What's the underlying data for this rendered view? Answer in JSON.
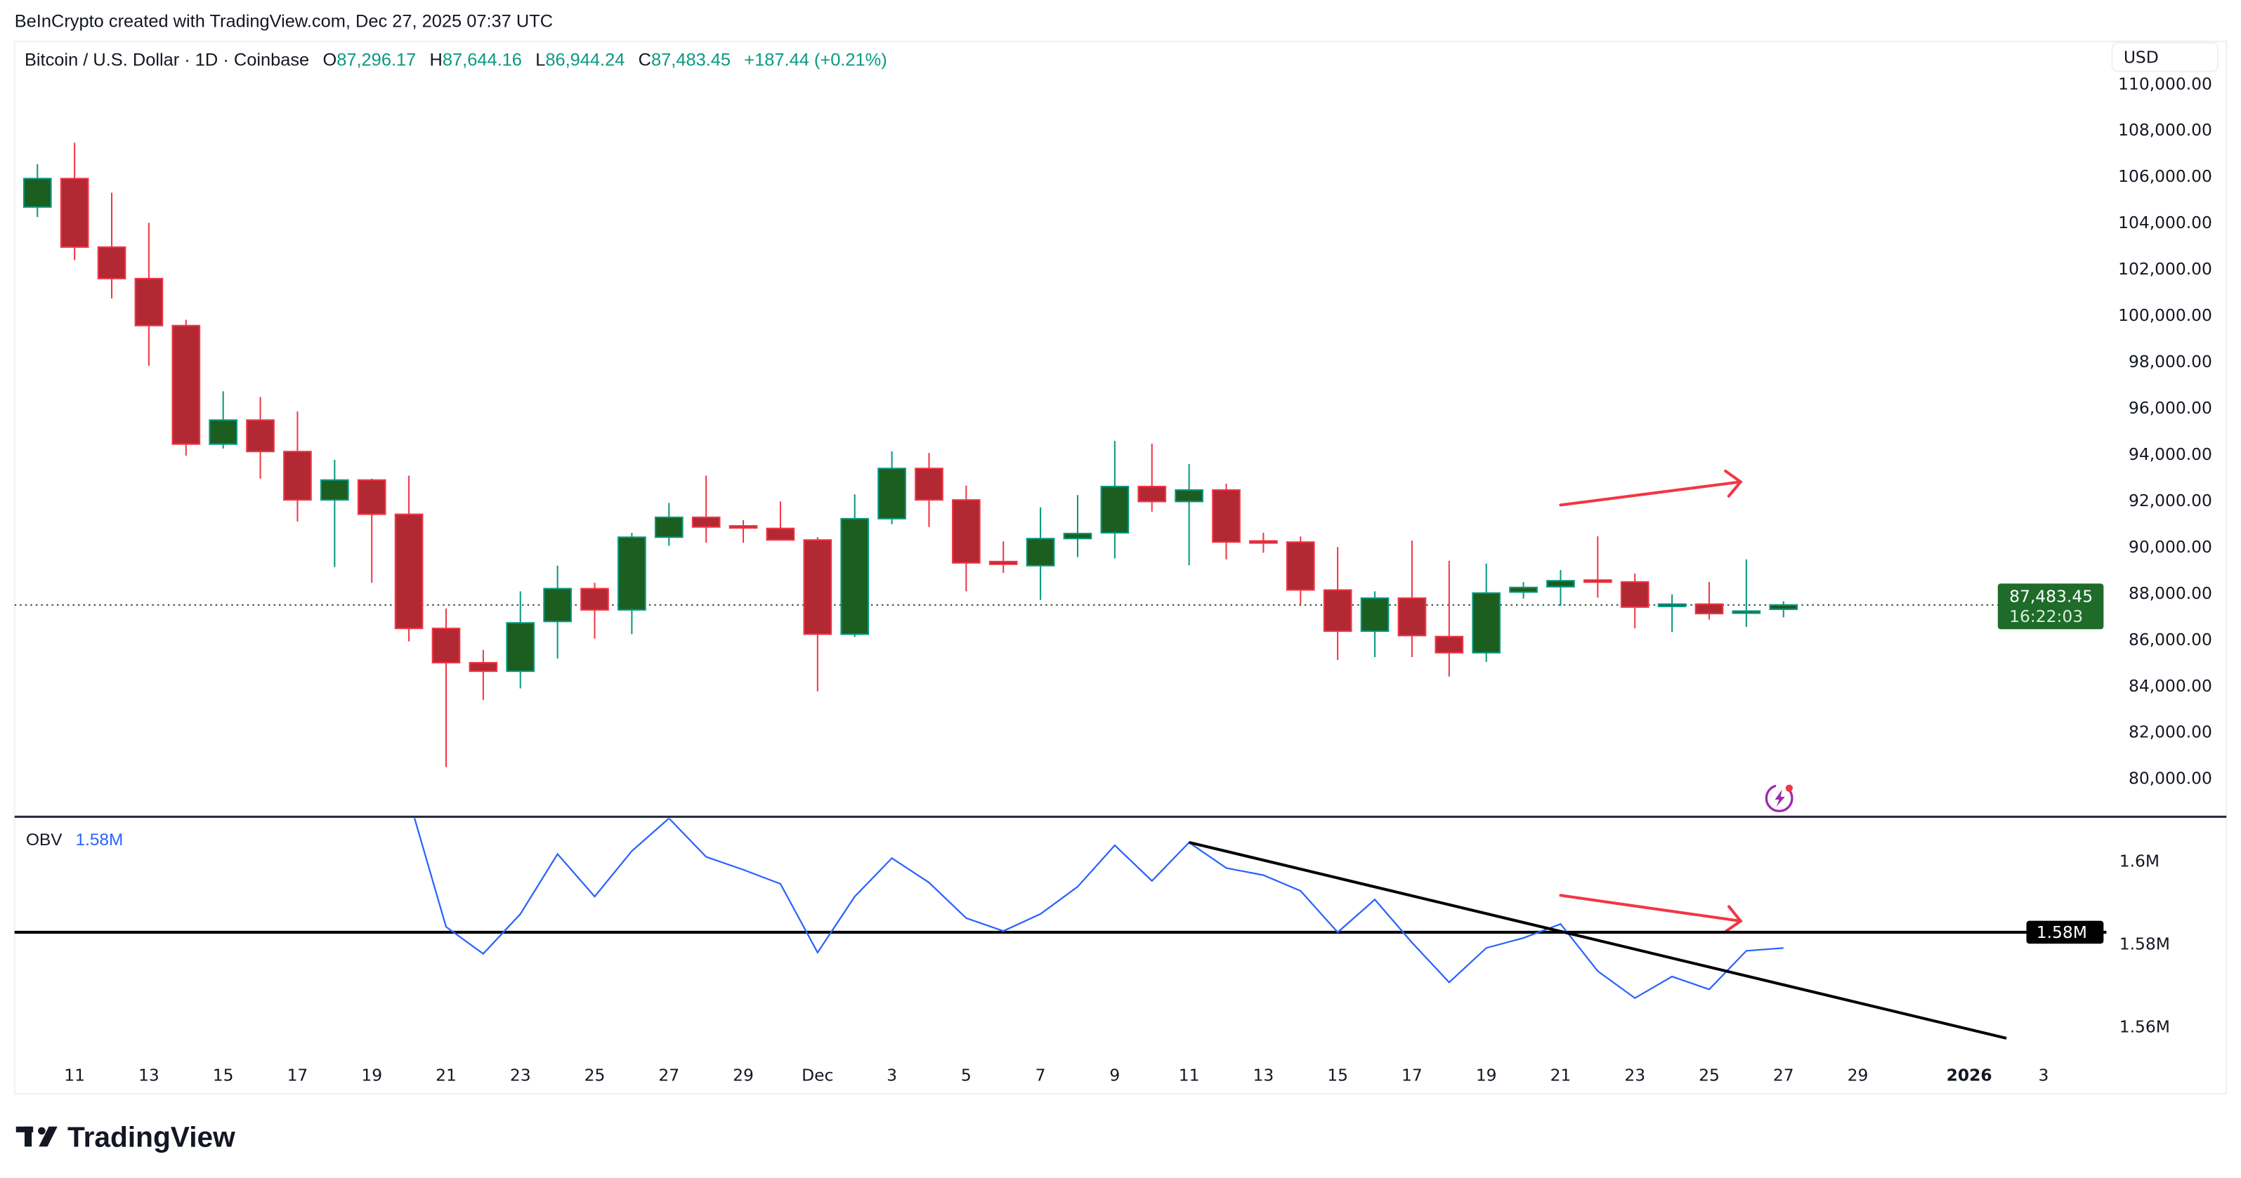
{
  "watermark": "BeInCrypto created with TradingView.com, Dec 27, 2025 07:37 UTC",
  "legend": {
    "symbol": "Bitcoin / U.S. Dollar · 1D · Coinbase",
    "o_label": "O",
    "o_value": "87,296.17",
    "h_label": "H",
    "h_value": "87,644.16",
    "l_label": "L",
    "l_value": "86,944.24",
    "c_label": "C",
    "c_value": "87,483.45",
    "change": "+187.44 (+0.21%)"
  },
  "currency_button": "USD",
  "last_price": {
    "value": "87,483.45",
    "countdown": "16:22:03"
  },
  "obv_legend": {
    "label": "OBV",
    "value": "1.58M"
  },
  "obv_level_label": "1.58M",
  "brand": "TradingView",
  "colors": {
    "up": "#089981",
    "up_body": "#1b5e20",
    "down": "#f23645",
    "down_body": "#b22833",
    "obv": "#2962ff",
    "annotation": "#f23645",
    "price_tag": "#1e6b2a"
  },
  "chart_data": [
    {
      "type": "candlestick",
      "title": "Bitcoin / U.S. Dollar · 1D · Coinbase",
      "ylim": [
        79000,
        110500
      ],
      "y_ticks": [
        "80,000.00",
        "82,000.00",
        "84,000.00",
        "86,000.00",
        "88,000.00",
        "90,000.00",
        "92,000.00",
        "94,000.00",
        "96,000.00",
        "98,000.00",
        "100,000.00",
        "102,000.00",
        "104,000.00",
        "106,000.00",
        "108,000.00",
        "110,000.00"
      ],
      "columns": [
        "date",
        "open",
        "high",
        "low",
        "close"
      ],
      "candles": [
        [
          "2025-11-10",
          104670,
          106520,
          104240,
          105900
        ],
        [
          "2025-11-11",
          105900,
          107450,
          102380,
          102940
        ],
        [
          "2025-11-12",
          102940,
          105290,
          100720,
          101580
        ],
        [
          "2025-11-13",
          101580,
          103990,
          97820,
          99550
        ],
        [
          "2025-11-14",
          99550,
          99800,
          93930,
          94430
        ],
        [
          "2025-11-15",
          94430,
          96710,
          94240,
          95470
        ],
        [
          "2025-11-16",
          95470,
          96460,
          92940,
          94110
        ],
        [
          "2025-11-17",
          94110,
          95840,
          91090,
          92020
        ],
        [
          "2025-11-18",
          92020,
          93750,
          89120,
          92880
        ],
        [
          "2025-11-19",
          92880,
          92940,
          88440,
          91400
        ],
        [
          "2025-11-20",
          91400,
          93070,
          85910,
          86470
        ],
        [
          "2025-11-21",
          86470,
          87330,
          80480,
          84990
        ],
        [
          "2025-11-22",
          84990,
          85540,
          83380,
          84620
        ],
        [
          "2025-11-23",
          84620,
          88070,
          83880,
          86710
        ],
        [
          "2025-11-24",
          86770,
          89180,
          85170,
          88190
        ],
        [
          "2025-11-25",
          88190,
          88440,
          86030,
          87270
        ],
        [
          "2025-11-26",
          87270,
          90600,
          86220,
          90410
        ],
        [
          "2025-11-27",
          90410,
          91890,
          90040,
          91270
        ],
        [
          "2025-11-28",
          91270,
          93070,
          90170,
          90850
        ],
        [
          "2025-11-29",
          90900,
          91150,
          90170,
          90820
        ],
        [
          "2025-11-30",
          90790,
          91950,
          90290,
          90290
        ],
        [
          "2025-12-01",
          90290,
          90410,
          83750,
          86220
        ],
        [
          "2025-12-02",
          86220,
          92260,
          86100,
          91210
        ],
        [
          "2025-12-03",
          91210,
          94120,
          90970,
          93380
        ],
        [
          "2025-12-04",
          93380,
          94050,
          90850,
          92020
        ],
        [
          "2025-12-05",
          92020,
          92640,
          88070,
          89300
        ],
        [
          "2025-12-06",
          89360,
          90230,
          88870,
          89240
        ],
        [
          "2025-12-07",
          89180,
          91700,
          87700,
          90350
        ],
        [
          "2025-12-08",
          90350,
          92230,
          89550,
          90570
        ],
        [
          "2025-12-09",
          90600,
          94570,
          89490,
          92600
        ],
        [
          "2025-12-10",
          92600,
          94450,
          91510,
          91950
        ],
        [
          "2025-12-11",
          91950,
          93570,
          89200,
          92450
        ],
        [
          "2025-12-12",
          92450,
          92720,
          89450,
          90200
        ],
        [
          "2025-12-13",
          90250,
          90600,
          89740,
          90200
        ],
        [
          "2025-12-14",
          90200,
          90440,
          87510,
          88130
        ],
        [
          "2025-12-15",
          88130,
          89990,
          85110,
          86350
        ],
        [
          "2025-12-16",
          86350,
          88070,
          85230,
          87780
        ],
        [
          "2025-12-17",
          87780,
          90270,
          85230,
          86160
        ],
        [
          "2025-12-18",
          86120,
          89390,
          84390,
          85420
        ],
        [
          "2025-12-19",
          85420,
          89270,
          85020,
          88000
        ],
        [
          "2025-12-20",
          88040,
          88470,
          87760,
          88240
        ],
        [
          "2025-12-21",
          88270,
          88990,
          87450,
          88530
        ],
        [
          "2025-12-22",
          88560,
          90450,
          87800,
          88520
        ],
        [
          "2025-12-23",
          88480,
          88840,
          86480,
          87390
        ],
        [
          "2025-12-24",
          87420,
          87940,
          86310,
          87520
        ],
        [
          "2025-12-25",
          87520,
          88480,
          86850,
          87110
        ],
        [
          "2025-12-26",
          87160,
          89450,
          86540,
          87220
        ],
        [
          "2025-12-27",
          87296.17,
          87644.16,
          86944.24,
          87483.45
        ]
      ],
      "last_close": 87483.45
    },
    {
      "type": "line",
      "series": [
        {
          "name": "OBV",
          "unit": "M"
        }
      ],
      "y_ticks": [
        "1.6M",
        "1.58M",
        "1.56M"
      ],
      "y_tick_values": [
        1.6,
        1.58,
        1.56
      ],
      "points": [
        [
          "2025-11-20",
          1.615
        ],
        [
          "2025-11-21",
          1.5841
        ],
        [
          "2025-11-22",
          1.5776
        ],
        [
          "2025-11-23",
          1.5872
        ],
        [
          "2025-11-24",
          1.6017
        ],
        [
          "2025-11-25",
          1.5914
        ],
        [
          "2025-11-26",
          1.6024
        ],
        [
          "2025-11-27",
          1.6103
        ],
        [
          "2025-11-28",
          1.601
        ],
        [
          "2025-11-29",
          1.5979
        ],
        [
          "2025-11-30",
          1.5945
        ],
        [
          "2025-12-01",
          1.5779
        ],
        [
          "2025-12-02",
          1.5914
        ],
        [
          "2025-12-03",
          1.6007
        ],
        [
          "2025-12-04",
          1.5948
        ],
        [
          "2025-12-05",
          1.5862
        ],
        [
          "2025-12-06",
          1.5831
        ],
        [
          "2025-12-07",
          1.5872
        ],
        [
          "2025-12-08",
          1.5938
        ],
        [
          "2025-12-09",
          1.6038
        ],
        [
          "2025-12-10",
          1.5952
        ],
        [
          "2025-12-11",
          1.6045
        ],
        [
          "2025-12-12",
          1.5983
        ],
        [
          "2025-12-13",
          1.5966
        ],
        [
          "2025-12-14",
          1.5928
        ],
        [
          "2025-12-15",
          1.5828
        ],
        [
          "2025-12-16",
          1.5907
        ],
        [
          "2025-12-17",
          1.5803
        ],
        [
          "2025-12-18",
          1.5707
        ],
        [
          "2025-12-19",
          1.579
        ],
        [
          "2025-12-20",
          1.5814
        ],
        [
          "2025-12-21",
          1.5848
        ],
        [
          "2025-12-22",
          1.5734
        ],
        [
          "2025-12-23",
          1.5669
        ],
        [
          "2025-12-24",
          1.5721
        ],
        [
          "2025-12-25",
          1.569
        ],
        [
          "2025-12-26",
          1.5783
        ],
        [
          "2025-12-27",
          1.579
        ]
      ],
      "horizontal_level": 1.5828,
      "trendline": {
        "from": [
          "2025-12-11",
          1.6045
        ],
        "to": [
          "2026-01-02",
          1.5572
        ]
      }
    }
  ],
  "x_ticks": [
    {
      "label": "11",
      "date": "2025-11-11"
    },
    {
      "label": "13",
      "date": "2025-11-13"
    },
    {
      "label": "15",
      "date": "2025-11-15"
    },
    {
      "label": "17",
      "date": "2025-11-17"
    },
    {
      "label": "19",
      "date": "2025-11-19"
    },
    {
      "label": "21",
      "date": "2025-11-21"
    },
    {
      "label": "23",
      "date": "2025-11-23"
    },
    {
      "label": "25",
      "date": "2025-11-25"
    },
    {
      "label": "27",
      "date": "2025-11-27"
    },
    {
      "label": "29",
      "date": "2025-11-29"
    },
    {
      "label": "Dec",
      "date": "2025-12-01"
    },
    {
      "label": "3",
      "date": "2025-12-03"
    },
    {
      "label": "5",
      "date": "2025-12-05"
    },
    {
      "label": "7",
      "date": "2025-12-07"
    },
    {
      "label": "9",
      "date": "2025-12-09"
    },
    {
      "label": "11",
      "date": "2025-12-11"
    },
    {
      "label": "13",
      "date": "2025-12-13"
    },
    {
      "label": "15",
      "date": "2025-12-15"
    },
    {
      "label": "17",
      "date": "2025-12-17"
    },
    {
      "label": "19",
      "date": "2025-12-19"
    },
    {
      "label": "21",
      "date": "2025-12-21"
    },
    {
      "label": "23",
      "date": "2025-12-23"
    },
    {
      "label": "25",
      "date": "2025-12-25"
    },
    {
      "label": "27",
      "date": "2025-12-27"
    },
    {
      "label": "29",
      "date": "2025-12-29"
    },
    {
      "label": "2026",
      "date": "2026-01-01",
      "bold": true
    },
    {
      "label": "3",
      "date": "2026-01-03"
    }
  ],
  "annotations": {
    "price_arrow": {
      "direction": "up",
      "from": [
        "2025-12-21",
        91800
      ],
      "to": [
        "2025-12-26",
        92800
      ]
    },
    "obv_arrow": {
      "direction": "down",
      "from": [
        "2025-12-21",
        1.5917
      ],
      "to": [
        "2025-12-26",
        1.5855
      ]
    }
  }
}
